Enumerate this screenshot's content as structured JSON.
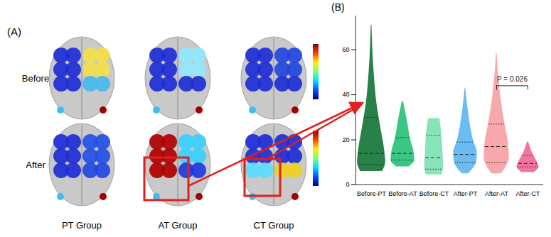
{
  "panel_a": {
    "label": "(A)",
    "row_labels": [
      "Before",
      "After"
    ],
    "column_labels": [
      "PT Group",
      "AT Group",
      "CT Group"
    ]
  },
  "chart_data": {
    "type": "violin",
    "panel_label": "(B)",
    "categories": [
      "Before-PT",
      "Before-AT",
      "Before-CT",
      "After-PT",
      "After-AT",
      "After-CT"
    ],
    "colors": [
      "#1b7a3e",
      "#2fc47c",
      "#7fe3b2",
      "#62b8f2",
      "#f7a3a6",
      "#ef6d9c"
    ],
    "ylim": [
      0,
      75
    ],
    "yticks": [
      0,
      20,
      40,
      60
    ],
    "grid": false,
    "median": [
      14,
      14,
      12,
      13.5,
      17,
      9.5
    ],
    "q1": [
      9,
      11,
      7,
      10,
      10,
      8
    ],
    "q3": [
      30,
      21,
      22,
      19,
      27,
      13
    ],
    "profiles": [
      {
        "y": [
          6,
          10,
          15,
          25,
          35,
          50,
          71
        ],
        "width": [
          0.35,
          0.45,
          0.42,
          0.3,
          0.18,
          0.08,
          0.01
        ]
      },
      {
        "y": [
          8,
          11,
          15,
          20,
          28,
          37
        ],
        "width": [
          0.2,
          0.38,
          0.35,
          0.25,
          0.15,
          0.02
        ]
      },
      {
        "y": [
          4.5,
          8,
          14,
          22,
          29.5
        ],
        "width": [
          0.25,
          0.3,
          0.28,
          0.25,
          0.18
        ]
      },
      {
        "y": [
          5,
          10,
          14,
          20,
          30,
          43
        ],
        "width": [
          0.1,
          0.35,
          0.38,
          0.25,
          0.12,
          0.01
        ]
      },
      {
        "y": [
          5,
          12,
          18,
          28,
          40,
          58.5
        ],
        "width": [
          0.15,
          0.4,
          0.38,
          0.25,
          0.12,
          0.01
        ]
      },
      {
        "y": [
          5.5,
          8,
          10,
          14,
          19
        ],
        "width": [
          0.2,
          0.35,
          0.3,
          0.15,
          0.02
        ]
      }
    ],
    "annotations": [
      {
        "text": "P = 0.026",
        "categories": [
          "After-AT",
          "After-CT"
        ],
        "y": 44
      }
    ]
  }
}
